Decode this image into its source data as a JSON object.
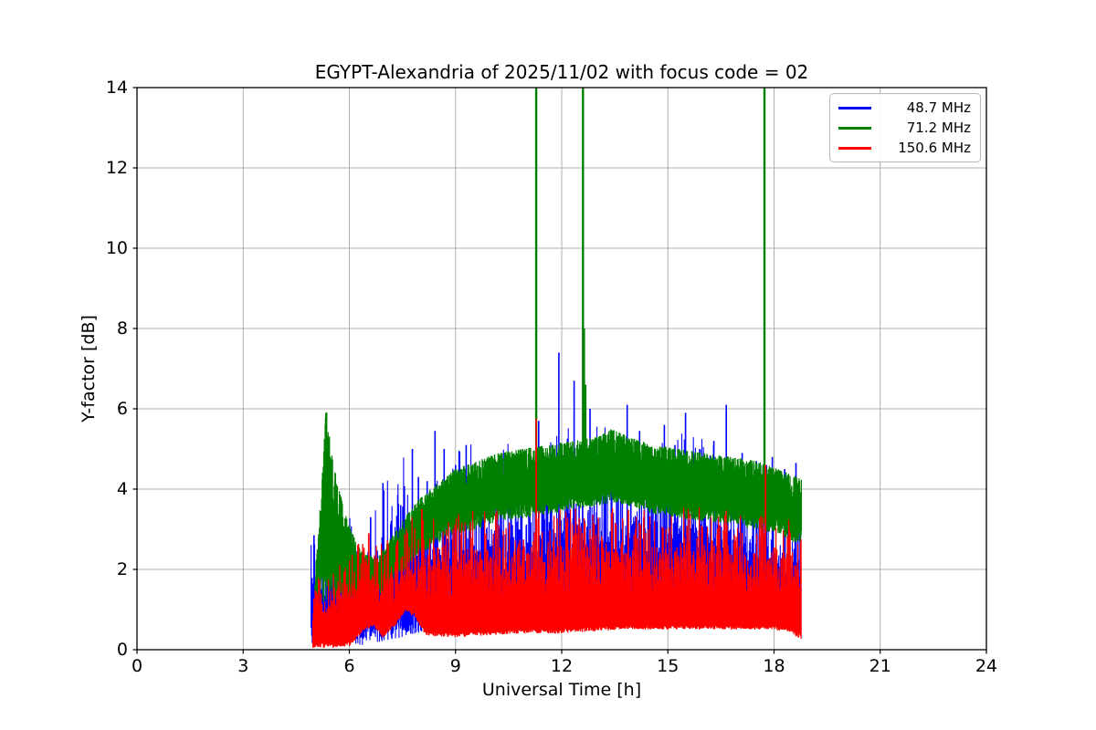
{
  "figure": {
    "background": "#ffffff",
    "spine_color": "#000000",
    "grid_color": "#b0b0b0"
  },
  "chart_data": {
    "type": "line",
    "title": "EGYPT-Alexandria of 2025/11/02 with focus code = 02",
    "xlabel": "Universal Time [h]",
    "ylabel": "Y-factor [dB]",
    "xlim": [
      0,
      24
    ],
    "ylim": [
      0,
      14
    ],
    "xticks": [
      0,
      3,
      6,
      9,
      12,
      15,
      18,
      21,
      24
    ],
    "yticks": [
      0,
      2,
      4,
      6,
      8,
      10,
      12,
      14
    ],
    "grid": true,
    "legend_position": "upper right",
    "description": "Noisy Y-factor time series for three frequencies; data present from ~4.9 h to ~18.8 h UT. Envelope rows give [time, band-low, (band-mid,) band-high] in dB; spikes give [time, peak dB]; green spikes at 14 reach the top of the axes (off-scale).",
    "series": [
      {
        "name": "48.7 MHz",
        "color": "#0000ff",
        "t_range": [
          4.92,
          18.77
        ],
        "envelope_fields": [
          "t",
          "lo",
          "mid",
          "hi"
        ],
        "envelope": [
          [
            4.92,
            0.1,
            1.9,
            2.9
          ],
          [
            5.4,
            0.15,
            2.2,
            3.2
          ],
          [
            5.9,
            0.15,
            2.3,
            3.5
          ],
          [
            6.25,
            0.1,
            1.7,
            3.0
          ],
          [
            6.6,
            0.15,
            2.2,
            4.0
          ],
          [
            7.0,
            0.2,
            2.6,
            4.4
          ],
          [
            7.5,
            0.3,
            2.8,
            4.8
          ],
          [
            8.1,
            0.4,
            3.0,
            5.0
          ],
          [
            9.0,
            0.5,
            3.0,
            5.1
          ],
          [
            10.0,
            0.6,
            3.1,
            5.2
          ],
          [
            11.0,
            0.7,
            3.2,
            5.4
          ],
          [
            12.0,
            0.8,
            3.3,
            5.6
          ],
          [
            13.0,
            0.8,
            3.3,
            5.6
          ],
          [
            14.0,
            0.8,
            3.25,
            5.5
          ],
          [
            15.0,
            0.85,
            3.2,
            5.4
          ],
          [
            16.0,
            0.9,
            3.2,
            5.4
          ],
          [
            17.0,
            0.9,
            3.0,
            5.0
          ],
          [
            18.0,
            0.9,
            2.6,
            4.6
          ],
          [
            18.45,
            0.9,
            2.3,
            4.4
          ],
          [
            18.77,
            0.9,
            2.1,
            4.5
          ]
        ],
        "spikes": [
          [
            5.0,
            2.85
          ],
          [
            5.6,
            3.1
          ],
          [
            6.6,
            3.3
          ],
          [
            6.95,
            4.15
          ],
          [
            7.45,
            3.6
          ],
          [
            7.78,
            5.0
          ],
          [
            7.95,
            4.3
          ],
          [
            8.2,
            4.2
          ],
          [
            8.42,
            5.45
          ],
          [
            8.68,
            5.0
          ],
          [
            9.0,
            4.6
          ],
          [
            9.3,
            5.1
          ],
          [
            9.8,
            4.5
          ],
          [
            10.3,
            4.7
          ],
          [
            10.7,
            4.4
          ],
          [
            11.1,
            5.0
          ],
          [
            11.35,
            5.7
          ],
          [
            11.6,
            4.9
          ],
          [
            11.92,
            7.4
          ],
          [
            12.1,
            5.1
          ],
          [
            12.35,
            6.7
          ],
          [
            12.8,
            6.0
          ],
          [
            13.2,
            5.3
          ],
          [
            13.55,
            5.0
          ],
          [
            13.85,
            6.1
          ],
          [
            14.2,
            5.45
          ],
          [
            14.55,
            5.0
          ],
          [
            14.9,
            5.6
          ],
          [
            15.2,
            5.1
          ],
          [
            15.5,
            5.9
          ],
          [
            15.9,
            5.0
          ],
          [
            16.3,
            5.2
          ],
          [
            16.65,
            6.1
          ],
          [
            17.1,
            4.9
          ],
          [
            17.5,
            4.7
          ],
          [
            17.95,
            4.8
          ],
          [
            18.3,
            4.5
          ],
          [
            18.62,
            4.65
          ]
        ]
      },
      {
        "name": "71.2 MHz",
        "color": "#008000",
        "t_range": [
          5.03,
          18.77
        ],
        "envelope_fields": [
          "t",
          "lo",
          "hi"
        ],
        "envelope": [
          [
            5.03,
            1.3,
            1.9
          ],
          [
            5.15,
            1.5,
            3.2
          ],
          [
            5.28,
            1.7,
            5.2
          ],
          [
            5.34,
            1.8,
            6.25
          ],
          [
            5.42,
            1.7,
            5.4
          ],
          [
            5.55,
            1.65,
            4.6
          ],
          [
            5.7,
            1.6,
            4.0
          ],
          [
            5.85,
            1.55,
            3.5
          ],
          [
            6.05,
            1.5,
            2.95
          ],
          [
            6.25,
            1.45,
            2.6
          ],
          [
            6.5,
            1.5,
            2.35
          ],
          [
            6.8,
            1.45,
            2.3
          ],
          [
            7.1,
            1.7,
            2.7
          ],
          [
            7.5,
            2.1,
            3.2
          ],
          [
            7.9,
            2.5,
            3.7
          ],
          [
            8.4,
            2.8,
            4.1
          ],
          [
            9.0,
            3.1,
            4.5
          ],
          [
            9.6,
            3.2,
            4.7
          ],
          [
            10.2,
            3.4,
            4.9
          ],
          [
            10.9,
            3.5,
            5.0
          ],
          [
            11.6,
            3.6,
            5.1
          ],
          [
            12.3,
            3.7,
            5.2
          ],
          [
            13.0,
            3.8,
            5.3
          ],
          [
            13.4,
            3.9,
            5.5
          ],
          [
            13.9,
            3.8,
            5.3
          ],
          [
            14.6,
            3.6,
            5.1
          ],
          [
            15.3,
            3.5,
            5.0
          ],
          [
            16.0,
            3.4,
            4.9
          ],
          [
            16.8,
            3.35,
            4.8
          ],
          [
            17.5,
            3.2,
            4.7
          ],
          [
            18.1,
            3.1,
            4.5
          ],
          [
            18.5,
            2.9,
            4.35
          ],
          [
            18.77,
            2.85,
            4.25
          ]
        ],
        "spikes": [
          [
            11.28,
            14
          ],
          [
            12.6,
            14
          ],
          [
            17.73,
            14
          ],
          [
            12.64,
            8.0
          ],
          [
            12.68,
            6.6
          ]
        ]
      },
      {
        "name": "150.6 MHz",
        "color": "#ff0000",
        "t_range": [
          4.97,
          18.77
        ],
        "envelope_fields": [
          "t",
          "lo",
          "mid",
          "hi"
        ],
        "envelope": [
          [
            4.97,
            0.05,
            1.2,
            1.7
          ],
          [
            5.5,
            0.05,
            1.4,
            2.0
          ],
          [
            6.0,
            0.08,
            1.6,
            2.4
          ],
          [
            6.45,
            0.5,
            1.9,
            2.85
          ],
          [
            6.7,
            0.55,
            1.85,
            2.8
          ],
          [
            6.95,
            0.3,
            1.8,
            2.8
          ],
          [
            7.3,
            0.6,
            1.8,
            3.0
          ],
          [
            7.6,
            0.95,
            2.1,
            3.3
          ],
          [
            7.85,
            0.8,
            2.15,
            3.35
          ],
          [
            8.15,
            0.35,
            2.2,
            3.4
          ],
          [
            9.0,
            0.3,
            2.2,
            3.4
          ],
          [
            9.8,
            0.35,
            2.3,
            3.5
          ],
          [
            10.8,
            0.4,
            2.4,
            3.5
          ],
          [
            11.8,
            0.4,
            2.4,
            3.5
          ],
          [
            12.8,
            0.45,
            2.5,
            3.6
          ],
          [
            13.8,
            0.5,
            2.5,
            3.5
          ],
          [
            14.8,
            0.5,
            2.4,
            3.5
          ],
          [
            15.8,
            0.5,
            2.5,
            3.6
          ],
          [
            16.8,
            0.5,
            2.5,
            3.6
          ],
          [
            17.8,
            0.5,
            2.4,
            3.4
          ],
          [
            18.4,
            0.45,
            2.3,
            3.3
          ],
          [
            18.77,
            0.25,
            2.0,
            3.0
          ]
        ],
        "spikes": [
          [
            6.55,
            2.9
          ],
          [
            8.05,
            3.5
          ],
          [
            11.28,
            5.75
          ],
          [
            17.76,
            4.6
          ]
        ]
      }
    ]
  }
}
